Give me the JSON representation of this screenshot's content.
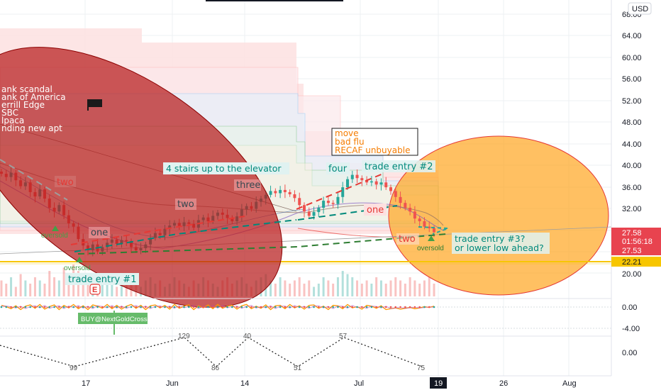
{
  "currency": "USD",
  "price_scale": {
    "ticks": [
      "68.00",
      "64.00",
      "60.00",
      "56.00",
      "52.00",
      "48.00",
      "44.00",
      "40.00",
      "36.00",
      "32.00",
      "28.00",
      "24.00",
      "20.00"
    ],
    "badges": [
      {
        "value": "27.58",
        "sub": "01:56:18",
        "color": "#e8434f"
      },
      {
        "value": "27.53",
        "sub": "",
        "color": "#e8434f"
      },
      {
        "value": "22.21",
        "sub": "",
        "color": "#f7c600"
      }
    ]
  },
  "time_axis": [
    "17",
    "Jun",
    "14",
    "Jul",
    "19",
    "26",
    "Aug"
  ],
  "oscillator_scale": [
    "0.00",
    "-4.00"
  ],
  "pivot_scale": [
    "0.00"
  ],
  "bank_list": [
    "ank scandal",
    "ank of America",
    "errill Edge",
    "SBC",
    "lpaca",
    "nding new apt"
  ],
  "news_box": [
    "move",
    "bad flu",
    "RECAF unbuyable"
  ],
  "wave_labels": {
    "two_a": "two",
    "one_a": "one",
    "two_b": "two",
    "three": "three",
    "four": "four",
    "one_b": "one",
    "two_c": "two"
  },
  "elevator_label": "4 stairs up to the elevator",
  "trade_entry_1": "trade entry #1",
  "trade_entry_2": "trade entry #2",
  "trade_entry_3": [
    "trade entry #3?",
    "or lower low ahead?"
  ],
  "oversold_labels": [
    "oversold",
    "oversold",
    "oversold"
  ],
  "earnings_marker": "E",
  "signal_label": "BUY@NextGoldCross",
  "pivot_labels": [
    "99",
    "129",
    "86",
    "40",
    "51",
    "57",
    "75"
  ],
  "colors": {
    "up": "#26a69a",
    "down": "#ef5350",
    "bank_circle": "#b71c1c",
    "right_circle": "#ffa726",
    "support": "#f7c600"
  },
  "chart_data": {
    "type": "candlestick",
    "series": [
      {
        "name": "price",
        "values": [
          38.4,
          37.8,
          38.6,
          37.2,
          36.1,
          36.8,
          35.0,
          34.2,
          35.5,
          33.8,
          32.1,
          31.4,
          32.6,
          30.7,
          29.2,
          28.6,
          26.3,
          25.1,
          24.2,
          25.3,
          24.0,
          24.8,
          25.6,
          26.2,
          25.4,
          26.1,
          25.9,
          24.8,
          24.2,
          24.6,
          25.3,
          26.5,
          27.4,
          27.0,
          28.2,
          28.8,
          29.3,
          28.7,
          29.4,
          29.1,
          28.4,
          29.8,
          30.3,
          29.6,
          30.6,
          31.2,
          30.8,
          30.2,
          29.6,
          30.5,
          31.8,
          32.4,
          31.9,
          33.2,
          33.8,
          34.5,
          35.2,
          34.8,
          35.4,
          35.0,
          34.6,
          33.9,
          32.6,
          31.4,
          30.6,
          31.3,
          32.1,
          33.4,
          33.0,
          32.8,
          34.1,
          35.9,
          37.4,
          38.2,
          37.6,
          37.2,
          36.8,
          37.0,
          36.4,
          36.8,
          35.9,
          35.2,
          34.1,
          33.0,
          32.1,
          31.4,
          30.1,
          29.6,
          28.6,
          28.3,
          27.58
        ]
      },
      {
        "name": "volume",
        "values": [
          0.5,
          0.4,
          0.6,
          0.3,
          0.7,
          0.5,
          0.4,
          0.6,
          0.5,
          0.4,
          0.8,
          0.6,
          0.5,
          0.9,
          0.7,
          1.0,
          0.8,
          0.6,
          0.5,
          0.4,
          0.5,
          0.6,
          0.4,
          0.5,
          0.3,
          0.4,
          0.5,
          0.6,
          0.4,
          0.3,
          0.5,
          0.6,
          0.4,
          0.5,
          0.3,
          0.4,
          0.6,
          0.5,
          0.4,
          0.3,
          0.5,
          0.4,
          0.6,
          0.5,
          0.4,
          0.3,
          0.5,
          0.6,
          0.4,
          0.5,
          0.6,
          0.4,
          0.3,
          0.5,
          0.6,
          0.7,
          0.5,
          0.4,
          0.6,
          0.5,
          0.4,
          0.5,
          0.6,
          0.4,
          0.5,
          0.3,
          0.4,
          0.6,
          0.5,
          0.4,
          0.6,
          0.8,
          0.7,
          0.6,
          0.5,
          0.4,
          0.5,
          0.4,
          0.6,
          0.5,
          0.4,
          0.5,
          0.6,
          0.5,
          0.4,
          0.6,
          0.5,
          0.4,
          0.5,
          0.6,
          0.4
        ]
      },
      {
        "name": "oscillator",
        "values": [
          0.4,
          0.1,
          -0.4,
          0.3,
          -0.6,
          0.2,
          0.5,
          -0.3,
          0.6,
          -0.5,
          0.1,
          0.5,
          -0.6,
          0.4,
          -0.2,
          0.6,
          -0.4,
          0.3,
          -0.6,
          0.5,
          0.2,
          -0.3,
          0.6,
          -0.4,
          0.4,
          -0.5,
          0.2,
          0.6,
          -0.3,
          0.4,
          -0.6,
          0.3,
          0.5,
          -0.2,
          0.4,
          -0.5,
          0.6,
          -0.3,
          0.2,
          0.5,
          -0.6,
          0.3,
          -0.2,
          0.5,
          -0.4,
          0.6,
          -0.3,
          0.2,
          0.4,
          -0.5,
          0.3,
          0.6,
          -0.4,
          0.2,
          -0.3,
          0.5,
          -0.6,
          0.3,
          0.4,
          -0.4,
          0.6,
          -0.2,
          0.3,
          -0.5,
          0.4,
          0.5,
          -0.3,
          0.2,
          -0.6,
          0.4,
          0.3,
          -0.4,
          0.6,
          -0.2,
          0.1,
          -0.5,
          0.4,
          0.2,
          -0.3,
          0.3,
          -0.6,
          -0.4,
          -0.2,
          -0.5,
          -0.3,
          -0.1,
          -0.4,
          -0.2,
          0.1,
          -0.1,
          0.2
        ]
      }
    ],
    "y_range": [
      18,
      69
    ],
    "support": 22.21,
    "price_labels": [
      27.58,
      27.53
    ]
  }
}
